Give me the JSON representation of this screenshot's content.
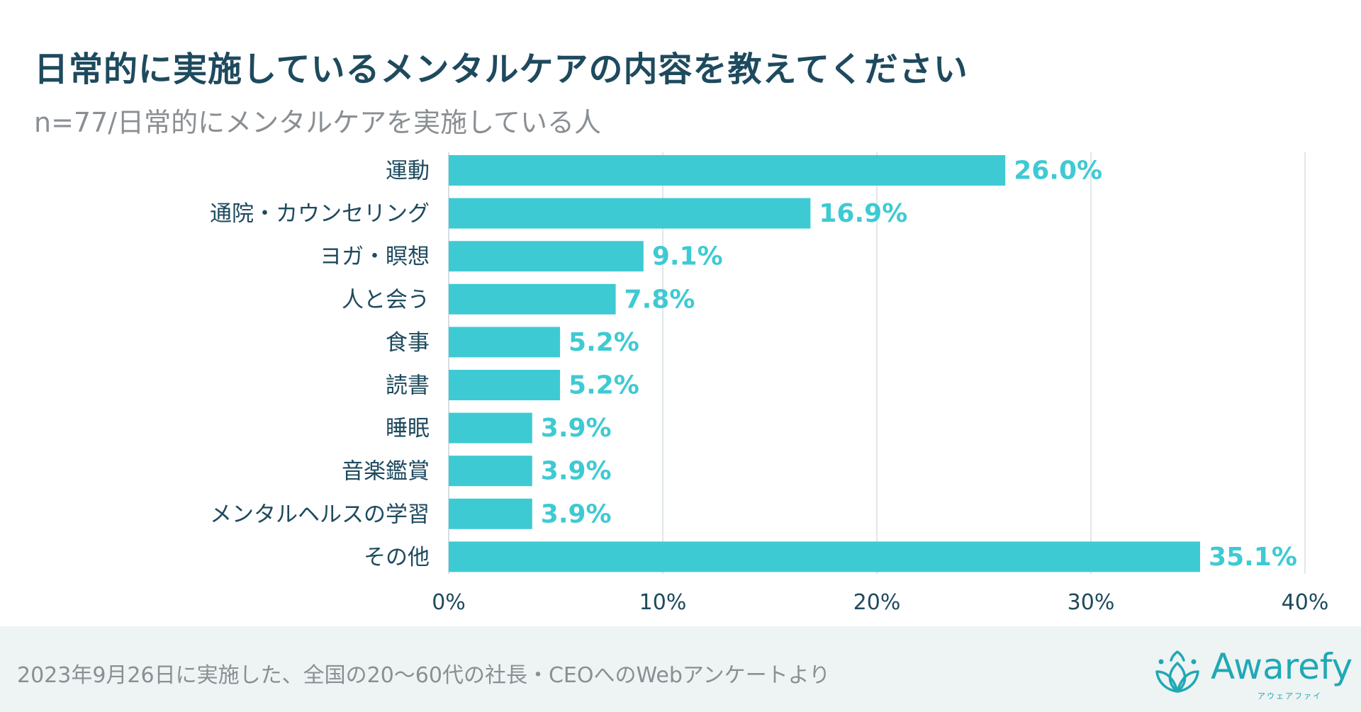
{
  "header": {
    "title": "日常的に実施しているメンタルケアの内容を教えてください",
    "subtitle": "n=77/日常的にメンタルケアを実施している人"
  },
  "chart_data": {
    "type": "bar",
    "orientation": "horizontal",
    "title": "日常的に実施しているメンタルケアの内容を教えてください",
    "categories": [
      "運動",
      "通院・カウンセリング",
      "ヨガ・瞑想",
      "人と会う",
      "食事",
      "読書",
      "睡眠",
      "音楽鑑賞",
      "メンタルヘルスの学習",
      "その他"
    ],
    "values": [
      26.0,
      16.9,
      9.1,
      7.8,
      5.2,
      5.2,
      3.9,
      3.9,
      3.9,
      35.1
    ],
    "data_labels": [
      "26.0%",
      "16.9%",
      "9.1%",
      "7.8%",
      "5.2%",
      "5.2%",
      "3.9%",
      "3.9%",
      "3.9%",
      "35.1%"
    ],
    "xlim": [
      0,
      40
    ],
    "xticks": [
      0,
      10,
      20,
      30,
      40
    ],
    "xtick_labels": [
      "0%",
      "10%",
      "20%",
      "30%",
      "40%"
    ],
    "grid": true,
    "legend": "none"
  },
  "colors": {
    "bar": "#3ecad3",
    "label": "#3ecad3",
    "title": "#1e4a5e",
    "axis_text": "#1e4a5e",
    "grid": "#d6dfe3",
    "brand": "#1fa9b4"
  },
  "footer": {
    "note": "2023年9月26日に実施した、全国の20〜60代の社長・CEOへのWebアンケートより",
    "logo_text": "Awarefy",
    "logo_sub": "アウェアファイ",
    "logo_icon": "lotus-icon"
  }
}
